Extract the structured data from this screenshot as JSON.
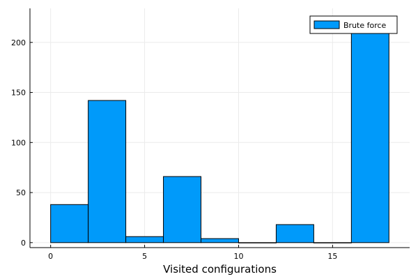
{
  "chart_data": {
    "type": "bar",
    "title": "",
    "xlabel": "Visited configurations",
    "ylabel": "",
    "bin_edges": [
      0,
      2,
      4,
      6,
      8,
      10,
      12,
      14,
      16,
      18
    ],
    "series": [
      {
        "name": "Brute force",
        "values": [
          38,
          142,
          6,
          66,
          4,
          0,
          18,
          0,
          226
        ]
      }
    ],
    "xlim": [
      -1.1,
      19.1
    ],
    "ylim": [
      -5,
      234
    ],
    "xticks": [
      0,
      5,
      10,
      15
    ],
    "yticks": [
      0,
      50,
      100,
      150,
      200
    ],
    "grid": true,
    "legend_position": "top-right",
    "colors": {
      "bar": "#009AFA",
      "bar_stroke": "#000000",
      "grid": "#EBEBEB"
    }
  }
}
